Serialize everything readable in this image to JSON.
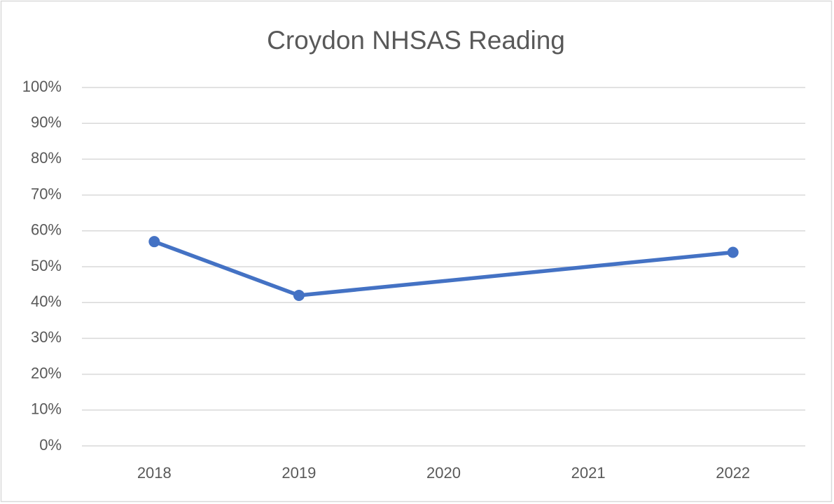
{
  "chart_data": {
    "type": "line",
    "title": "Croydon NHSAS Reading",
    "x": [
      2018,
      2019,
      2022
    ],
    "series": [
      {
        "name": "Croydon NHSAS Reading",
        "color": "#4472c4",
        "values": [
          57,
          42,
          54
        ]
      }
    ],
    "xlim": [
      2017.5,
      2022.5
    ],
    "xticks": [
      2018,
      2019,
      2020,
      2021,
      2022
    ],
    "ylim": [
      0,
      100
    ],
    "yticks": [
      {
        "value": 0,
        "label": "0%"
      },
      {
        "value": 10,
        "label": "10%"
      },
      {
        "value": 20,
        "label": "20%"
      },
      {
        "value": 30,
        "label": "30%"
      },
      {
        "value": 40,
        "label": "40%"
      },
      {
        "value": 50,
        "label": "50%"
      },
      {
        "value": 60,
        "label": "60%"
      },
      {
        "value": 70,
        "label": "70%"
      },
      {
        "value": 80,
        "label": "80%"
      },
      {
        "value": 90,
        "label": "90%"
      },
      {
        "value": 100,
        "label": "100%"
      }
    ],
    "grid": true
  }
}
